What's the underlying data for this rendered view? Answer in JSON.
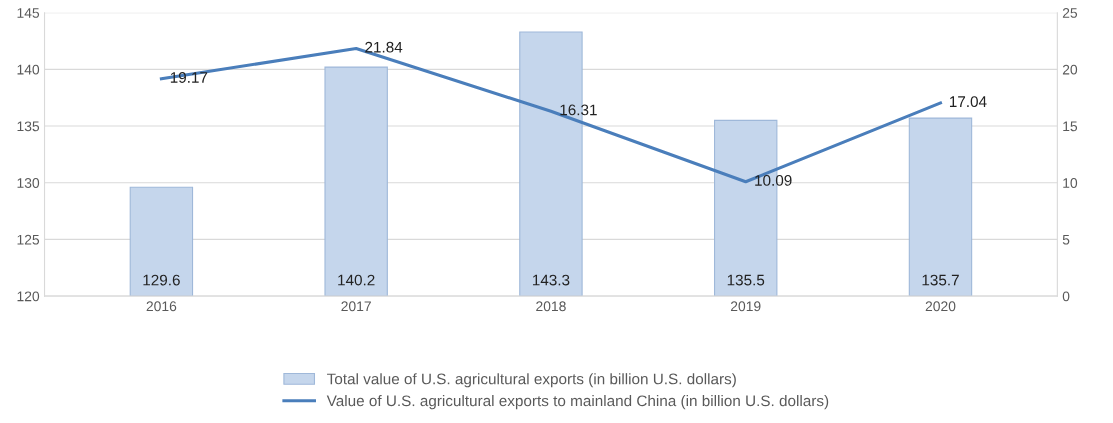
{
  "chart_data": {
    "type": "bar",
    "categories": [
      "2016",
      "2017",
      "2018",
      "2019",
      "2020"
    ],
    "series": [
      {
        "name": "Total value of U.S. agricultural exports (in billion U.S. dollars)",
        "color": "#c5d6ec",
        "values": [
          129.6,
          140.2,
          143.3,
          135.5,
          135.7
        ]
      },
      {
        "name": "Value of U.S. agricultural exports to mainland China (in billion U.S. dollars)",
        "type": "line",
        "axis": "y2",
        "color": "#4a7ebb",
        "values": [
          19.17,
          21.84,
          16.31,
          10.09,
          17.04
        ]
      }
    ],
    "ylim": [
      120,
      145
    ],
    "yticks": [
      120,
      125,
      130,
      135,
      140,
      145
    ],
    "y2lim": [
      0,
      25
    ],
    "y2ticks": [
      0,
      5,
      10,
      15,
      20,
      25
    ],
    "grid": "y",
    "legend": "bottom",
    "data_labels": true,
    "marker": "none",
    "line_style": "solid"
  }
}
